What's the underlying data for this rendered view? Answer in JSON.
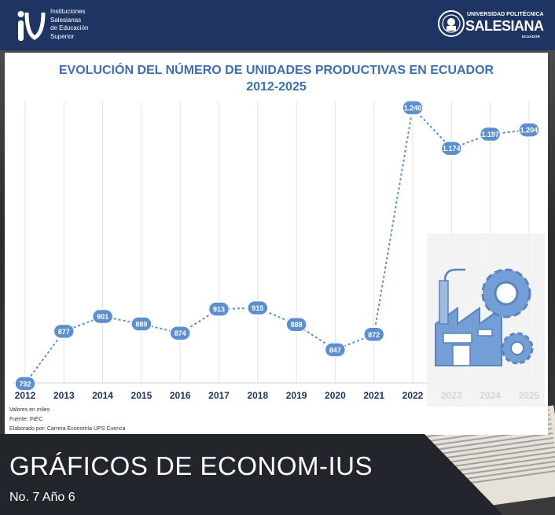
{
  "header": {
    "left_logo_text": "Instituciones\nSalesianas\nde Educación\nSuperior",
    "right_logo_line1": "UNIVERSIDAD POLITÉCNICA",
    "right_logo_line2": "SALESIANA",
    "right_logo_line3": "ECUADOR"
  },
  "chart_data": {
    "type": "line",
    "title": "EVOLUCIÓN DEL NÚMERO DE UNIDADES PRODUCTIVAS EN ECUADOR\n2012-2025",
    "categories": [
      "2012",
      "2013",
      "2014",
      "2015",
      "2016",
      "2017",
      "2018",
      "2019",
      "2020",
      "2021",
      "2022",
      "2023",
      "2024",
      "2025"
    ],
    "values": [
      792,
      877,
      901,
      889,
      874,
      913,
      915,
      888,
      847,
      872,
      1240,
      1174,
      1197,
      1204
    ],
    "value_labels": [
      "792",
      "877",
      "901",
      "889",
      "874",
      "913",
      "915",
      "888",
      "847",
      "872",
      "1.240",
      "1.174",
      "1.197",
      "1.204"
    ],
    "ylim": [
      700,
      1300
    ],
    "grid": "vertical",
    "color": "#5b8fd0"
  },
  "notes": {
    "units": "Valores en miles",
    "source": "Fuente: INEC",
    "author": "Elaborado por: Carrera Economía UPS Cuenca"
  },
  "footer": {
    "title": "GRÁFICOS DE ECONOM-IUS",
    "issue": "No. 7 Año 6"
  }
}
